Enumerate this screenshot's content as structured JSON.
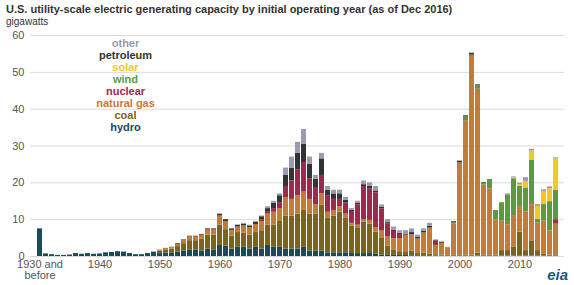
{
  "chart_data": {
    "type": "bar",
    "stacked": true,
    "title": "U.S. utility-scale electric generating capacity by initial operating year (as of Dec 2016)",
    "subtitle": "gigawatts",
    "logo": "eia",
    "legend": "top-left",
    "grid": true,
    "ylim": [
      0,
      60
    ],
    "yticks": [
      0,
      10,
      20,
      30,
      40,
      50,
      60
    ],
    "categories": [
      "1930 and\nbefore",
      null,
      null,
      null,
      null,
      null,
      null,
      null,
      null,
      null,
      "1940",
      null,
      null,
      null,
      null,
      null,
      null,
      null,
      null,
      null,
      "1950",
      null,
      null,
      null,
      null,
      null,
      null,
      null,
      null,
      null,
      "1960",
      null,
      null,
      null,
      null,
      null,
      null,
      null,
      null,
      null,
      "1970",
      null,
      null,
      null,
      null,
      null,
      null,
      null,
      null,
      null,
      "1980",
      null,
      null,
      null,
      null,
      null,
      null,
      null,
      null,
      null,
      "1990",
      null,
      null,
      null,
      null,
      null,
      null,
      null,
      null,
      null,
      "2000",
      null,
      null,
      null,
      null,
      null,
      null,
      null,
      null,
      null,
      "2010",
      null,
      null,
      null,
      null,
      null,
      null
    ],
    "series": [
      {
        "name": "hydro",
        "color": "#1b4a5a",
        "values": [
          7.5,
          0.7,
          0.5,
          0.3,
          0.3,
          0.4,
          0.8,
          0.6,
          0.8,
          0.6,
          0.7,
          1.0,
          1.1,
          1.3,
          1.2,
          0.8,
          0.5,
          0.5,
          0.8,
          1.2,
          0.8,
          0.9,
          1.0,
          1.2,
          1.5,
          1.8,
          1.8,
          1.5,
          2.0,
          1.8,
          3.0,
          2.8,
          2.0,
          2.5,
          2.5,
          2.0,
          2.5,
          2.0,
          3.0,
          2.5,
          2.5,
          2.0,
          2.0,
          2.0,
          2.5,
          1.5,
          1.5,
          1.5,
          1.0,
          1.0,
          1.0,
          1.0,
          0.8,
          0.8,
          0.8,
          0.8,
          0.6,
          0.4,
          0.3,
          0.3,
          0.3,
          0.3,
          0.2,
          0.2,
          0.2,
          0.2,
          0.1,
          0.1,
          0.1,
          0.1,
          0.1,
          0.1,
          0.1,
          0.1,
          0.1,
          0.1,
          0.1,
          0.1,
          0.1,
          0.1,
          0.1,
          0.1,
          0.1,
          0.1,
          0.1,
          0.1,
          0.1
        ]
      },
      {
        "name": "coal",
        "color": "#7a6419",
        "values": [
          0,
          0,
          0,
          0,
          0,
          0,
          0,
          0,
          0,
          0,
          0,
          0,
          0,
          0,
          0,
          0,
          0,
          0,
          0,
          0,
          0.6,
          0.9,
          1.0,
          1.5,
          2.0,
          2.5,
          2.5,
          3.2,
          3.8,
          4.0,
          5.5,
          4.5,
          3.5,
          4.0,
          3.8,
          3.8,
          4.0,
          5.0,
          5.5,
          6.0,
          7.0,
          9.0,
          9.0,
          9.5,
          10.0,
          10.0,
          10.0,
          12.5,
          9.5,
          10.0,
          11.0,
          9.5,
          7.5,
          7.0,
          8.5,
          8.0,
          6.0,
          4.5,
          2.5,
          1.5,
          1.0,
          1.0,
          1.2,
          0.6,
          0.7,
          0.5,
          0.4,
          0.3,
          0.2,
          0.2,
          0.2,
          0.3,
          0.2,
          0.8,
          0.3,
          0.2,
          0.3,
          1.5,
          1.5,
          2.5,
          6.5,
          1.5,
          4.0,
          1.5,
          0.5,
          0.3,
          0.2
        ]
      },
      {
        "name": "natural gas",
        "color": "#c57a35",
        "values": [
          0,
          0,
          0,
          0,
          0,
          0,
          0,
          0,
          0,
          0,
          0,
          0,
          0,
          0,
          0,
          0,
          0,
          0,
          0,
          0,
          0.2,
          0.3,
          0.4,
          0.6,
          0.8,
          1.0,
          1.0,
          1.1,
          1.4,
          1.4,
          2.5,
          2.2,
          1.6,
          1.5,
          2.0,
          2.0,
          2.2,
          2.5,
          3.0,
          3.5,
          3.5,
          5.0,
          4.5,
          5.0,
          5.0,
          4.0,
          2.5,
          3.0,
          1.5,
          1.5,
          1.5,
          1.0,
          0.7,
          0.7,
          0.7,
          1.0,
          1.2,
          2.0,
          2.5,
          3.0,
          3.5,
          4.5,
          4.5,
          4.0,
          5.5,
          7.0,
          2.5,
          3.2,
          1.8,
          8.5,
          25.0,
          36.5,
          54.0,
          44.5,
          19.0,
          18.0,
          9.5,
          8.0,
          7.0,
          8.5,
          7.0,
          10.5,
          10.0,
          7.5,
          9.0,
          6.5,
          8.5
        ]
      },
      {
        "name": "nuclear",
        "color": "#a0284f",
        "values": [
          0,
          0,
          0,
          0,
          0,
          0,
          0,
          0,
          0,
          0,
          0,
          0,
          0,
          0,
          0,
          0,
          0,
          0,
          0,
          0,
          0,
          0,
          0,
          0,
          0,
          0,
          0,
          0,
          0,
          0,
          0,
          0,
          0,
          0,
          0,
          0,
          0,
          0.5,
          0.5,
          1.0,
          1.5,
          3.0,
          5.0,
          7.0,
          8.0,
          5.5,
          4.5,
          5.0,
          4.5,
          3.0,
          2.0,
          3.0,
          3.0,
          5.5,
          9.0,
          8.5,
          9.5,
          6.0,
          3.5,
          2.0,
          1.2,
          0,
          0,
          0,
          0,
          0,
          1.2,
          0,
          0,
          0,
          0,
          0,
          0,
          0,
          0,
          0,
          0,
          0,
          0,
          0,
          0,
          0,
          0,
          0,
          0,
          0,
          1.2
        ]
      },
      {
        "name": "wind",
        "color": "#5c9a3c",
        "values": [
          0,
          0,
          0,
          0,
          0,
          0,
          0,
          0,
          0,
          0,
          0,
          0,
          0,
          0,
          0,
          0,
          0,
          0,
          0,
          0,
          0,
          0,
          0,
          0,
          0,
          0,
          0,
          0,
          0,
          0,
          0,
          0,
          0,
          0,
          0,
          0,
          0,
          0,
          0,
          0,
          0,
          0,
          0,
          0,
          0,
          0,
          0,
          0,
          0,
          0,
          0,
          0,
          0,
          0,
          0,
          0,
          0,
          0,
          0,
          0,
          0,
          0,
          0,
          0,
          0,
          0,
          0,
          0,
          0,
          0.5,
          0.1,
          1.0,
          0.4,
          1.0,
          0.4,
          2.3,
          2.5,
          5.0,
          8.0,
          10.0,
          5.5,
          6.5,
          12.0,
          1.0,
          4.5,
          8.0,
          8.0
        ]
      },
      {
        "name": "solar",
        "color": "#f5c723",
        "values": [
          0,
          0,
          0,
          0,
          0,
          0,
          0,
          0,
          0,
          0,
          0,
          0,
          0,
          0,
          0,
          0,
          0,
          0,
          0,
          0,
          0,
          0,
          0,
          0,
          0,
          0,
          0,
          0,
          0,
          0,
          0,
          0,
          0,
          0,
          0,
          0,
          0,
          0,
          0,
          0,
          0,
          0,
          0,
          0,
          0,
          0,
          0,
          0,
          0,
          0,
          0,
          0,
          0,
          0,
          0,
          0,
          0,
          0,
          0,
          0,
          0,
          0,
          0,
          0,
          0,
          0,
          0,
          0,
          0,
          0,
          0,
          0,
          0,
          0,
          0,
          0,
          0,
          0,
          0.1,
          0.2,
          0.4,
          1.8,
          2.5,
          3.5,
          3.5,
          3.5,
          8.5
        ]
      },
      {
        "name": "petroleum",
        "color": "#333333",
        "values": [
          0,
          0,
          0,
          0,
          0,
          0,
          0,
          0,
          0,
          0,
          0,
          0,
          0,
          0,
          0,
          0,
          0,
          0,
          0,
          0,
          0.1,
          0.1,
          0.1,
          0.2,
          0.2,
          0.2,
          0.2,
          0.2,
          0.3,
          0.3,
          0.5,
          0.5,
          0.4,
          0.5,
          0.5,
          0.5,
          0.6,
          0.8,
          1.0,
          1.5,
          2.0,
          3.0,
          3.5,
          4.5,
          5.0,
          4.0,
          2.5,
          4.5,
          1.5,
          1.5,
          1.5,
          0.8,
          0.5,
          0.5,
          0.5,
          0.7,
          0.5,
          0.5,
          0.4,
          0.3,
          0.3,
          0.3,
          0.6,
          0.4,
          0.4,
          0.5,
          0.2,
          0.2,
          0.2,
          0.2,
          0.4,
          0.3,
          0.4,
          0.2,
          0.2,
          0.2,
          0.1,
          0,
          0.1,
          0,
          0,
          0,
          0,
          0,
          0,
          0,
          0
        ]
      },
      {
        "name": "other",
        "color": "#9a9ab0",
        "values": [
          0,
          0,
          0,
          0,
          0,
          0,
          0,
          0,
          0,
          0,
          0,
          0,
          0,
          0,
          0,
          0,
          0,
          0,
          0,
          0,
          0,
          0,
          0,
          0,
          0,
          0,
          0,
          0,
          0,
          0,
          0,
          0,
          0,
          0,
          0.2,
          0.2,
          0.2,
          0.2,
          0.5,
          0.5,
          0.5,
          2.0,
          3.0,
          3.0,
          4.0,
          2.0,
          1.0,
          1.5,
          1.0,
          1.0,
          1.0,
          0.7,
          0.5,
          0.5,
          1.0,
          1.0,
          1.2,
          0.6,
          0.8,
          0.9,
          0.7,
          0.9,
          1.0,
          0.6,
          0.7,
          0.8,
          0.1,
          0.2,
          0.2,
          0,
          0.2,
          0,
          0.2,
          0,
          0,
          0,
          0,
          0,
          0.2,
          0.3,
          0.4,
          1.0,
          0.5,
          0.5,
          0.5,
          0.5,
          0.3
        ]
      }
    ]
  }
}
